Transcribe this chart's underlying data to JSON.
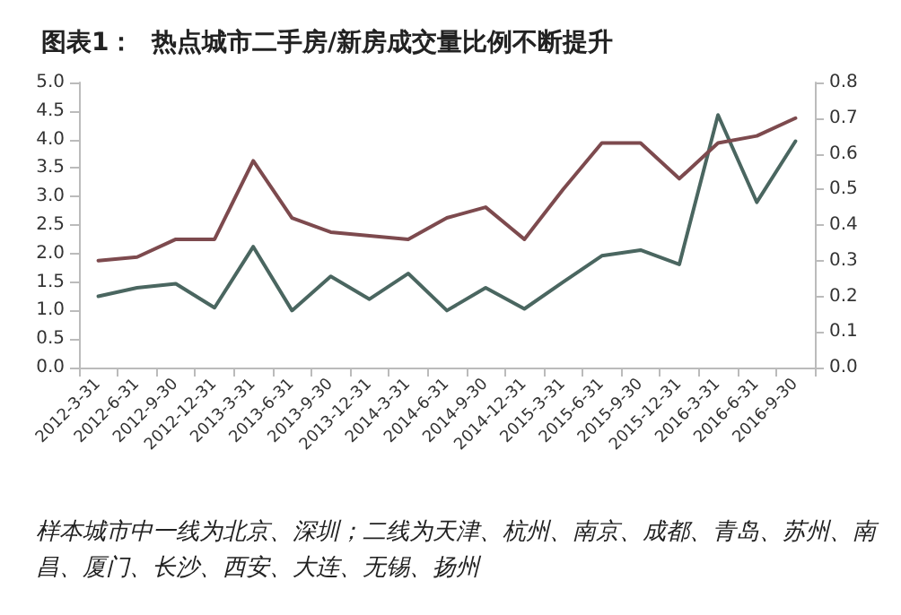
{
  "chart_data": {
    "type": "line",
    "title": "图表1：  热点城市二手房/新房成交量比例不断提升",
    "categories": [
      "2012-3-31",
      "2012-6-31",
      "2012-9-30",
      "2012-12-31",
      "2013-3-31",
      "2013-6-31",
      "2013-9-30",
      "2013-12-31",
      "2014-3-31",
      "2014-6-31",
      "2014-9-30",
      "2014-12-31",
      "2015-3-31",
      "2015-6-31",
      "2015-9-30",
      "2015-12-31",
      "2016-3-31",
      "2016-6-31",
      "2016-9-30"
    ],
    "series": [
      {
        "color": "#4a6660",
        "values": [
          1.25,
          1.4,
          1.47,
          1.05,
          2.12,
          1.0,
          1.6,
          1.2,
          1.65,
          1.0,
          1.4,
          1.03,
          1.5,
          1.96,
          2.06,
          1.81,
          4.43,
          2.9,
          3.97
        ]
      },
      {
        "color": "#7d4a4e",
        "axis": "y2",
        "values": [
          0.3,
          0.31,
          0.36,
          0.36,
          0.58,
          0.42,
          0.38,
          0.37,
          0.36,
          0.42,
          0.45,
          0.36,
          0.5,
          0.63,
          0.63,
          0.53,
          0.63,
          0.65,
          0.7
        ]
      }
    ],
    "ylim": [
      0,
      5
    ],
    "yticks": [
      {
        "value": 0,
        "label": "0.0"
      },
      {
        "value": 0.5,
        "label": "0.5"
      },
      {
        "value": 1,
        "label": "1.0"
      },
      {
        "value": 1.5,
        "label": "1.5"
      },
      {
        "value": 2,
        "label": "2.0"
      },
      {
        "value": 2.5,
        "label": "2.5"
      },
      {
        "value": 3,
        "label": "3.0"
      },
      {
        "value": 3.5,
        "label": "3.5"
      },
      {
        "value": 4,
        "label": "4.0"
      },
      {
        "value": 4.5,
        "label": "4.5"
      },
      {
        "value": 5,
        "label": "5.0"
      }
    ],
    "y2lim": [
      0,
      0.8
    ],
    "y2ticks": [
      {
        "value": 0,
        "label": "0.0"
      },
      {
        "value": 0.1,
        "label": "0.1"
      },
      {
        "value": 0.2,
        "label": "0.2"
      },
      {
        "value": 0.3,
        "label": "0.3"
      },
      {
        "value": 0.4,
        "label": "0.4"
      },
      {
        "value": 0.5,
        "label": "0.5"
      },
      {
        "value": 0.6,
        "label": "0.6"
      },
      {
        "value": 0.7,
        "label": "0.7"
      },
      {
        "value": 0.8,
        "label": "0.8"
      }
    ],
    "grid": false,
    "marker": "none",
    "line_style": "solid",
    "annotations": [
      "样本城市中一线为北京、深圳；二线为天津、杭州、南京、成都、青岛、苏州、南昌、厦门、长沙、西安、大连、无锡、扬州"
    ]
  }
}
